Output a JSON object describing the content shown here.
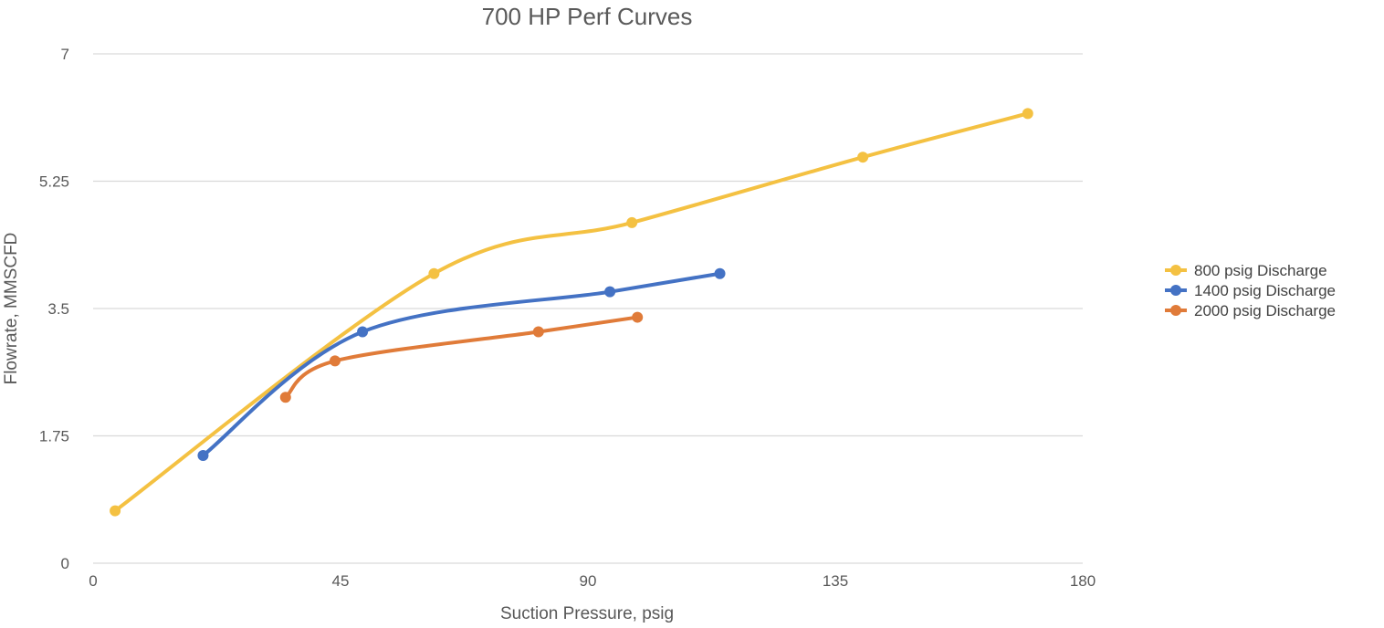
{
  "chart_data": {
    "type": "scatter",
    "title": "700 HP Perf Curves",
    "xlabel": "Suction Pressure, psig",
    "ylabel": "Flowrate, MMSCFD",
    "xlim": [
      0,
      180
    ],
    "ylim": [
      0,
      7
    ],
    "x_ticks": [
      "0",
      "45",
      "90",
      "135",
      "180"
    ],
    "y_ticks": [
      "0",
      "1.75",
      "3.5",
      "5.25",
      "7"
    ],
    "grid": "horizontal",
    "legend_position": "right",
    "smooth_lines": true,
    "series": [
      {
        "name": "800 psig Discharge",
        "color": "#F4C142",
        "points": [
          [
            4,
            0.72
          ],
          [
            62,
            3.98
          ],
          [
            98,
            4.68
          ],
          [
            140,
            5.58
          ],
          [
            170,
            6.18
          ]
        ]
      },
      {
        "name": "1400 psig Discharge",
        "color": "#4472C4",
        "points": [
          [
            20,
            1.48
          ],
          [
            49,
            3.18
          ],
          [
            94,
            3.73
          ],
          [
            114,
            3.98
          ]
        ]
      },
      {
        "name": "2000 psig Discharge",
        "color": "#E07B39",
        "points": [
          [
            35,
            2.28
          ],
          [
            44,
            2.78
          ],
          [
            81,
            3.18
          ],
          [
            99,
            3.38
          ]
        ]
      }
    ]
  }
}
